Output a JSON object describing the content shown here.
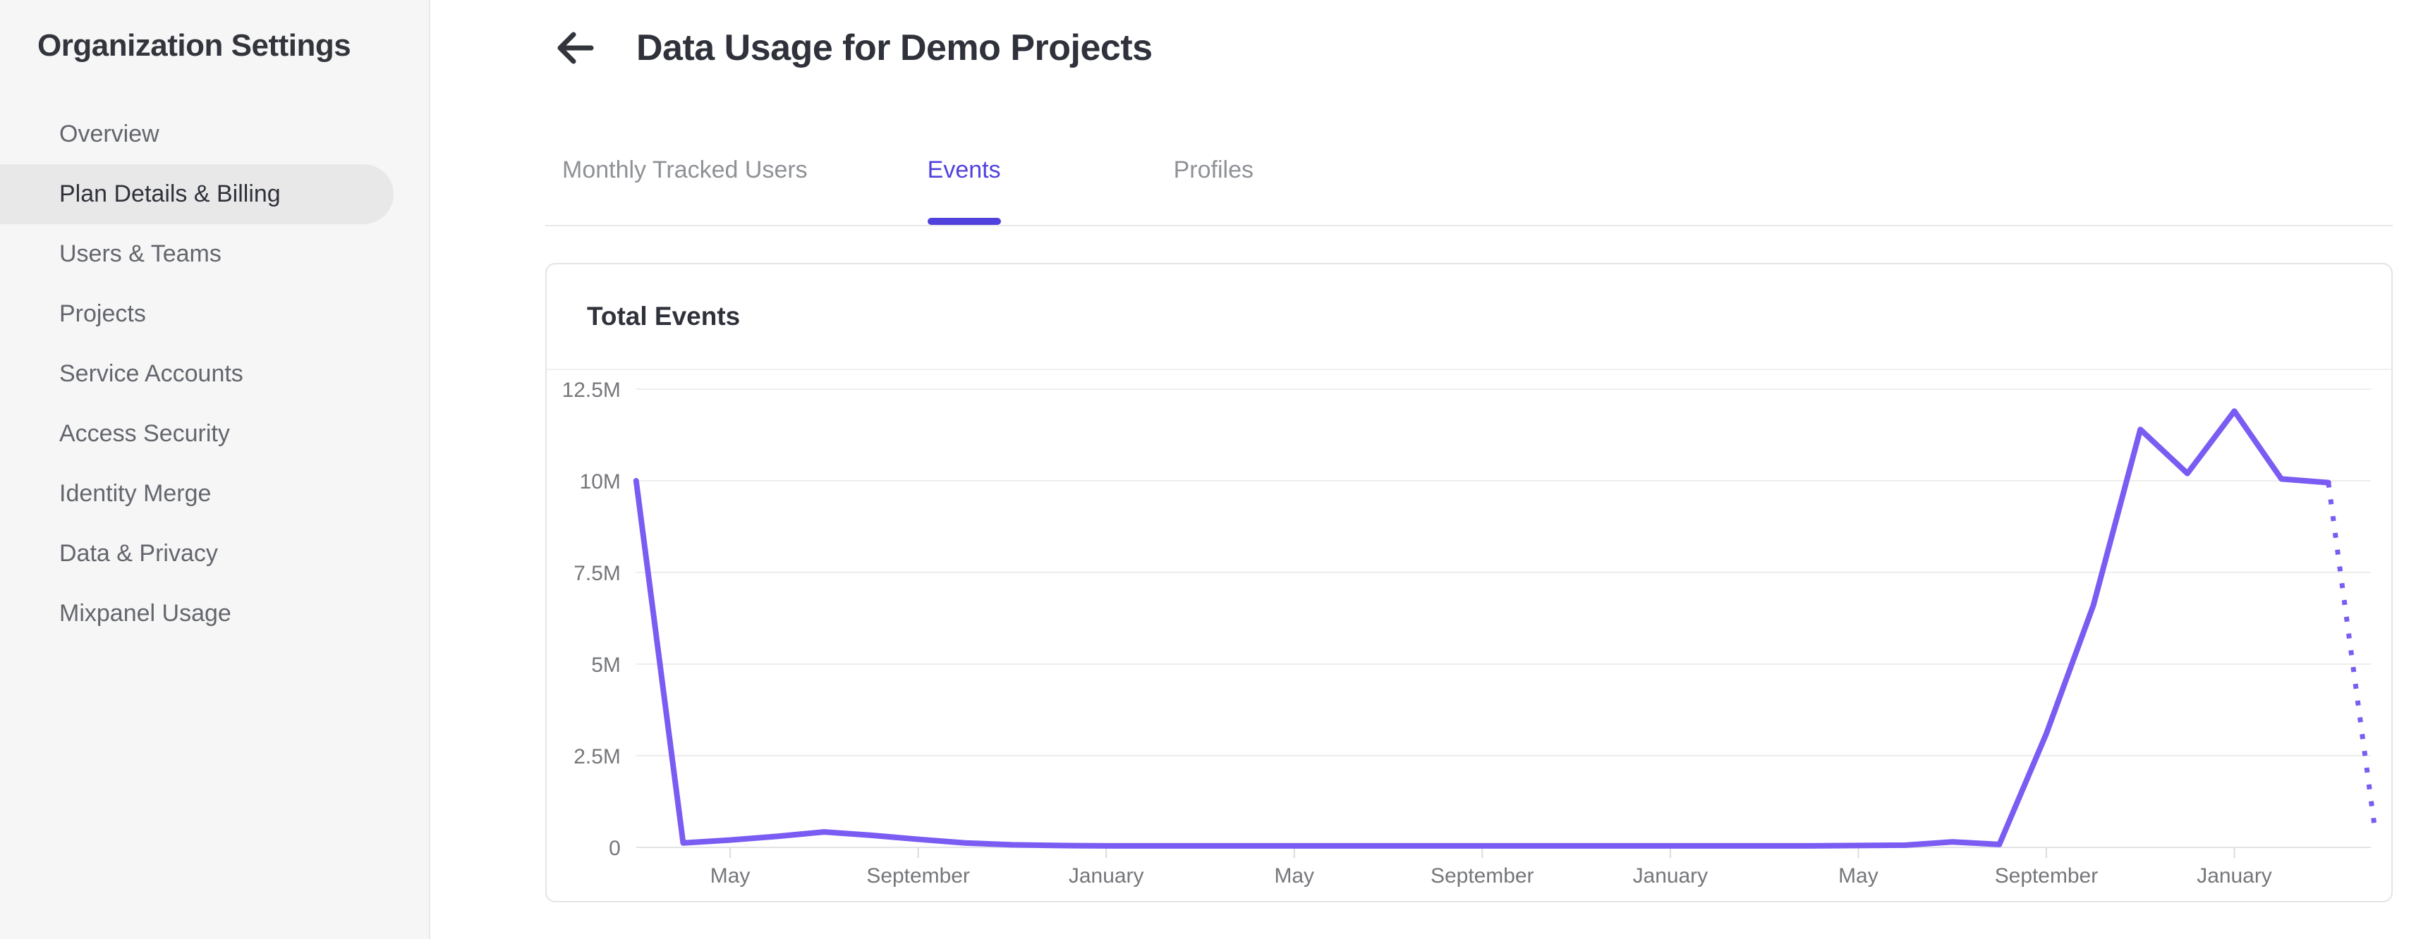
{
  "sidebar": {
    "title": "Organization Settings",
    "items": [
      {
        "label": "Overview",
        "active": false
      },
      {
        "label": "Plan Details & Billing",
        "active": true
      },
      {
        "label": "Users & Teams",
        "active": false
      },
      {
        "label": "Projects",
        "active": false
      },
      {
        "label": "Service Accounts",
        "active": false
      },
      {
        "label": "Access Security",
        "active": false
      },
      {
        "label": "Identity Merge",
        "active": false
      },
      {
        "label": "Data & Privacy",
        "active": false
      },
      {
        "label": "Mixpanel Usage",
        "active": false
      }
    ]
  },
  "header": {
    "back_icon": "left-arrow",
    "title": "Data Usage for Demo Projects"
  },
  "tabs": [
    {
      "label": "Monthly Tracked Users",
      "active": false
    },
    {
      "label": "Events",
      "active": true
    },
    {
      "label": "Profiles",
      "active": false
    }
  ],
  "colors": {
    "accent_tab": "#5142dd",
    "line": "#7a5cf3",
    "grid": "#ededee",
    "axis": "#e2e3e5",
    "tick": "#dcdcde",
    "axis_label": "#74767a"
  },
  "chart_data": {
    "type": "line",
    "title": "Total Events",
    "ylabel": "",
    "xlabel": "",
    "unit": "millions of events",
    "ylim": [
      0,
      12.5
    ],
    "grid": "horizontal",
    "last_segment_dotted": true,
    "y_ticks": [
      {
        "value": 12.5,
        "label": "12.5M"
      },
      {
        "value": 10,
        "label": "10M"
      },
      {
        "value": 7.5,
        "label": "7.5M"
      },
      {
        "value": 5,
        "label": "5M"
      },
      {
        "value": 2.5,
        "label": "2.5M"
      },
      {
        "value": 0,
        "label": "0"
      }
    ],
    "x_ticks": [
      {
        "index": 2,
        "label": "May"
      },
      {
        "index": 6,
        "label": "September"
      },
      {
        "index": 10,
        "label": "January"
      },
      {
        "index": 14,
        "label": "May"
      },
      {
        "index": 18,
        "label": "September"
      },
      {
        "index": 22,
        "label": "January"
      },
      {
        "index": 26,
        "label": "May"
      },
      {
        "index": 30,
        "label": "September"
      },
      {
        "index": 34,
        "label": "January"
      }
    ],
    "series": [
      {
        "name": "Total Events",
        "values_millions": [
          10,
          0.12,
          0.2,
          0.3,
          0.42,
          0.33,
          0.22,
          0.12,
          0.07,
          0.05,
          0.04,
          0.04,
          0.04,
          0.04,
          0.04,
          0.04,
          0.04,
          0.04,
          0.04,
          0.04,
          0.04,
          0.04,
          0.04,
          0.04,
          0.04,
          0.04,
          0.05,
          0.06,
          0.15,
          0.08,
          3.1,
          6.6,
          11.4,
          10.2,
          11.9,
          10.05,
          9.95,
          0.4
        ]
      }
    ]
  }
}
